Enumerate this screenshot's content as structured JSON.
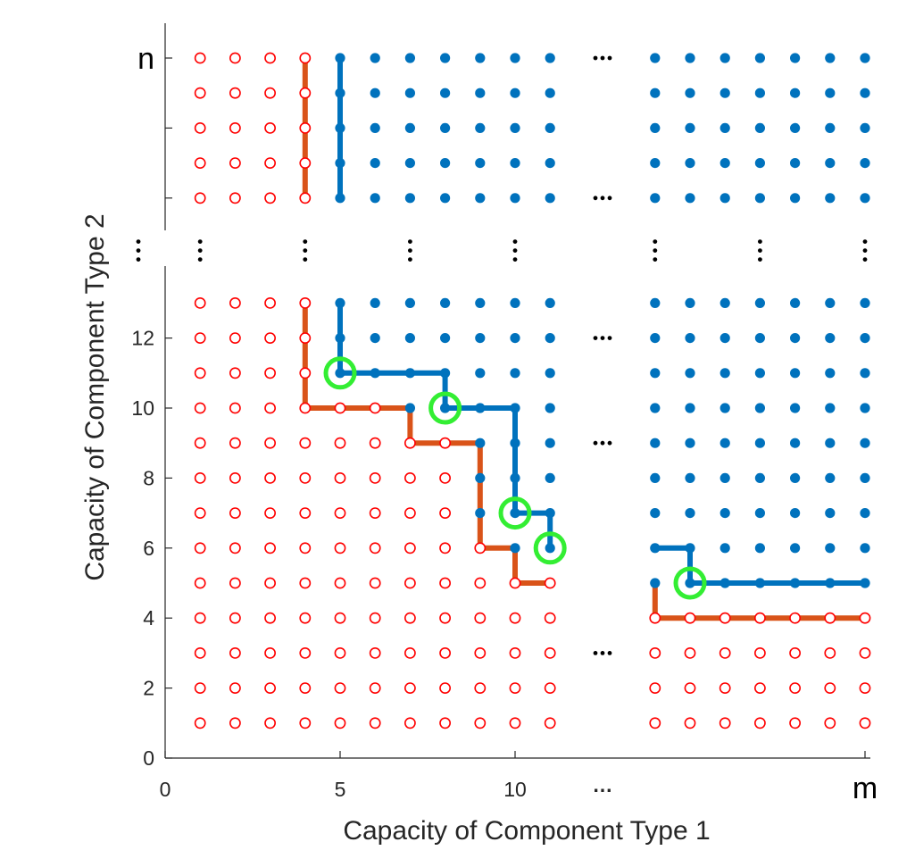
{
  "chart_data": {
    "type": "scatter",
    "xlabel": "Capacity of Component Type 1",
    "ylabel": "Capacity of Component Type 2",
    "x_tick_labels": [
      "0",
      "5",
      "10",
      "…",
      "m"
    ],
    "y_tick_labels": [
      "0",
      "2",
      "4",
      "6",
      "8",
      "10",
      "12",
      "⋮",
      "n"
    ],
    "x_ticks": [
      0,
      5,
      10
    ],
    "y_ticks": [
      0,
      2,
      4,
      6,
      8,
      10,
      12
    ],
    "xlim": [
      0,
      20
    ],
    "ylim": [
      0,
      20
    ],
    "x_columns": [
      1,
      2,
      3,
      4,
      5,
      6,
      7,
      8,
      9,
      10,
      11,
      14,
      15,
      16,
      17,
      18,
      19,
      20
    ],
    "y_rows": [
      1,
      2,
      3,
      4,
      5,
      6,
      7,
      8,
      9,
      10,
      11,
      12,
      13,
      16,
      17,
      18,
      19,
      20
    ],
    "failure_threshold_by_x": {
      "1": 20,
      "2": 20,
      "3": 20,
      "4": 20,
      "5": 10,
      "6": 10,
      "7": 9,
      "8": 9,
      "9": 6,
      "10": 5,
      "11": 5,
      "14": 4,
      "15": 4,
      "16": 4,
      "17": 4,
      "18": 4,
      "19": 4,
      "20": 4
    },
    "series": [
      {
        "marker": "open-circle",
        "color": "#ff0000"
      },
      {
        "marker": "filled-circle",
        "color": "#0072bd"
      }
    ],
    "boundary_lines": [
      {
        "color": "#d95319",
        "points": [
          [
            4,
            20
          ],
          [
            4,
            16
          ],
          [
            4,
            13
          ],
          [
            4,
            10
          ],
          [
            7,
            10
          ],
          [
            7,
            9
          ],
          [
            9,
            9
          ],
          [
            9,
            6
          ],
          [
            10,
            6
          ],
          [
            10,
            5
          ],
          [
            11,
            5
          ]
        ],
        "break_after_index": 1
      },
      {
        "color": "#d95319",
        "points": [
          [
            14,
            5
          ],
          [
            14,
            4
          ],
          [
            20,
            4
          ]
        ]
      },
      {
        "color": "#0072bd",
        "points": [
          [
            5,
            20
          ],
          [
            5,
            16
          ],
          [
            5,
            13
          ],
          [
            5,
            11
          ],
          [
            8,
            11
          ],
          [
            8,
            10
          ],
          [
            10,
            10
          ],
          [
            10,
            7
          ],
          [
            11,
            7
          ],
          [
            11,
            6
          ]
        ],
        "break_after_index": 1
      },
      {
        "color": "#0072bd",
        "points": [
          [
            14,
            6
          ],
          [
            15,
            6
          ],
          [
            15,
            5
          ],
          [
            20,
            5
          ]
        ]
      }
    ],
    "highlighted_points": {
      "color": "#33ee33",
      "points": [
        [
          5,
          11
        ],
        [
          8,
          10
        ],
        [
          10,
          7
        ],
        [
          11,
          6
        ],
        [
          15,
          5
        ]
      ]
    },
    "gap_columns_x": [
      12,
      13
    ],
    "gap_rows_y": [
      14,
      15
    ],
    "ellipsis_h_rows_y": [
      3,
      9,
      12,
      16,
      20
    ],
    "ellipsis_v_columns_x": [
      1,
      4,
      7,
      10,
      14,
      17,
      20
    ],
    "ellipsis_v_y": 14.5
  }
}
